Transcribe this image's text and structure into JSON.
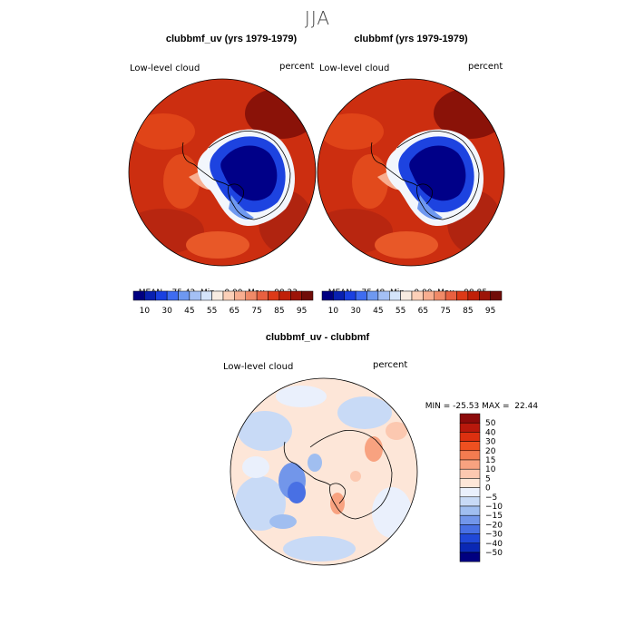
{
  "page_title": "JJA",
  "panels": [
    {
      "title": "clubbmf_uv (yrs 1979-1979)",
      "variable_label": "Low-level cloud",
      "unit_label": "percent",
      "stats": {
        "mean_label": "MEAN=",
        "mean": "75.42",
        "min_label": "Min=",
        "min": "0.00",
        "max_label": "Max=",
        "max": "98.23"
      }
    },
    {
      "title": "clubbmf (yrs 1979-1979)",
      "variable_label": "Low-level cloud",
      "unit_label": "percent",
      "stats": {
        "mean_label": "MEAN=",
        "mean": "75.48",
        "min_label": "Min=",
        "min": "0.00",
        "max_label": "Max=",
        "max": "98.85"
      }
    },
    {
      "title": "clubbmf_uv - clubbmf",
      "variable_label": "Low-level cloud",
      "unit_label": "percent",
      "stats": {
        "min_label": "MIN =",
        "min": "-25.53",
        "max_label": "MAX =",
        "max": "22.44"
      }
    }
  ],
  "colorbar_abs": {
    "labels": [
      "10",
      "30",
      "45",
      "55",
      "65",
      "75",
      "85",
      "95"
    ],
    "colors": [
      "#000080",
      "#0820b0",
      "#1a40e0",
      "#3f6cf0",
      "#6e98f0",
      "#a4c0f4",
      "#d4e4fa",
      "#f8ece2",
      "#fcd0b8",
      "#f8ae90",
      "#f08a68",
      "#e86040",
      "#dc3a18",
      "#c02008",
      "#9c1408",
      "#700c08"
    ]
  },
  "colorbar_diff": {
    "labels": [
      "50",
      "40",
      "30",
      "20",
      "15",
      "10",
      "5",
      "0",
      "−5",
      "−10",
      "−15",
      "−20",
      "−30",
      "−40",
      "−50"
    ],
    "colors": [
      "#8c0a0a",
      "#b8180c",
      "#dc3010",
      "#ee5020",
      "#f47c50",
      "#f8a280",
      "#fcc8b0",
      "#fde6d8",
      "#eaf0fc",
      "#c8daf6",
      "#a0bef0",
      "#7296ea",
      "#4870e4",
      "#2048d8",
      "#0a28b4",
      "#000080"
    ]
  }
}
